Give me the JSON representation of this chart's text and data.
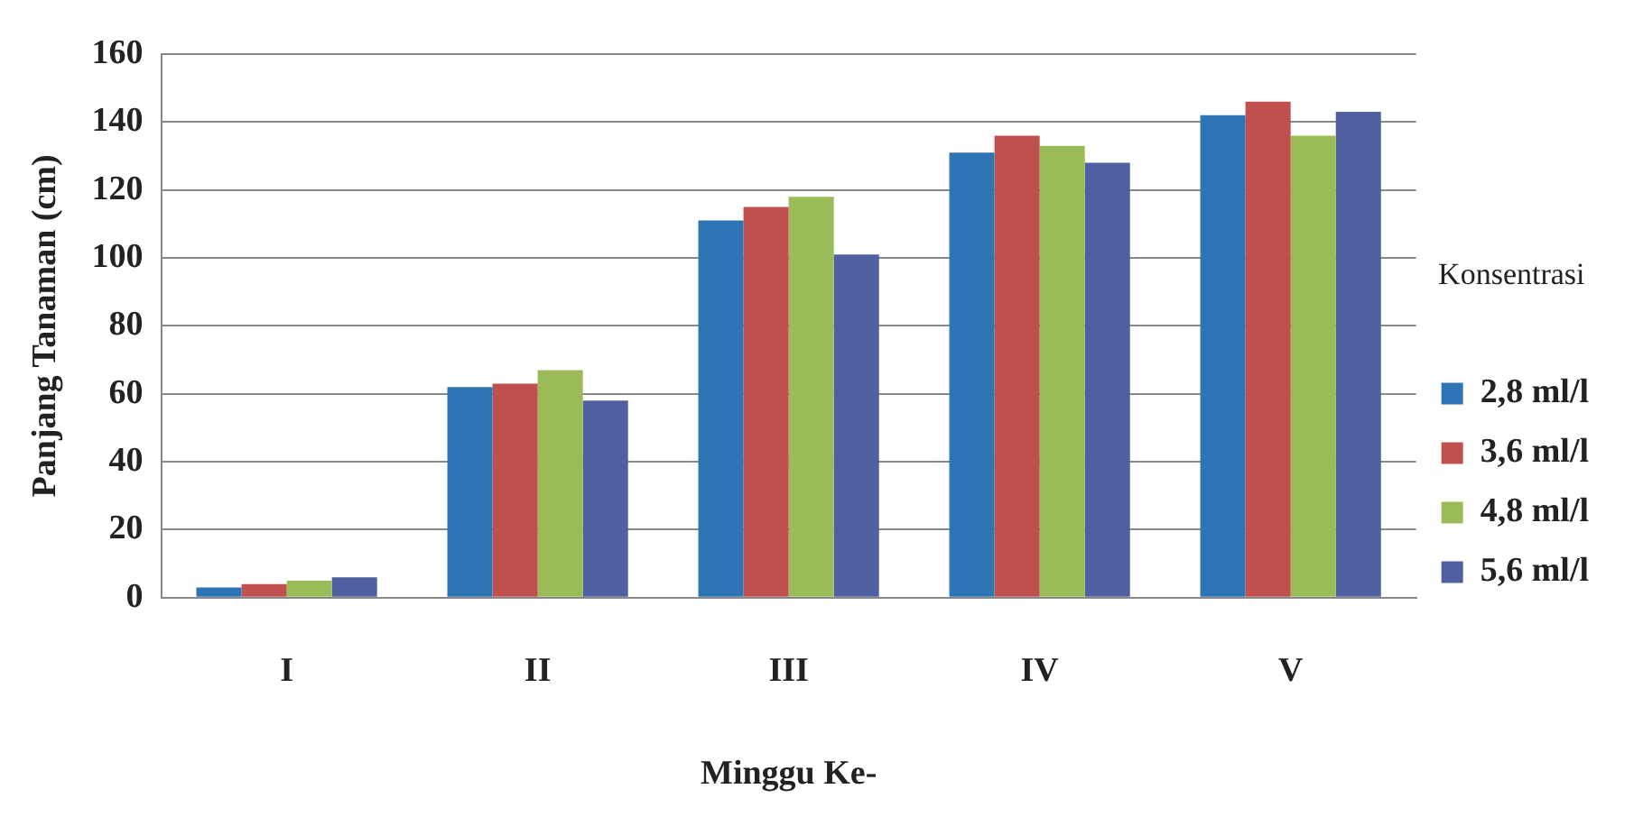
{
  "chart_data": {
    "type": "bar",
    "xlabel": "Minggu Ke-",
    "ylabel": "Panjang Tanaman (cm)",
    "legend_title": "Konsentrasi",
    "legend": "right",
    "grid": "y",
    "categories": [
      "I",
      "II",
      "III",
      "IV",
      "V"
    ],
    "ylim": [
      0,
      160
    ],
    "yticks": [
      0,
      20,
      40,
      60,
      80,
      100,
      120,
      140,
      160
    ],
    "series": [
      {
        "name": "2,8 ml/l",
        "color": "#2e75b6",
        "values": [
          3,
          62,
          111,
          131,
          142
        ]
      },
      {
        "name": "3,6 ml/l",
        "color": "#c0504d",
        "values": [
          4,
          63,
          115,
          136,
          146
        ]
      },
      {
        "name": "4,8 ml/l",
        "color": "#9bbb59",
        "values": [
          5,
          67,
          118,
          133,
          136
        ]
      },
      {
        "name": "5,6 ml/l",
        "color": "#4f5f9f",
        "values": [
          6,
          58,
          101,
          128,
          143
        ]
      }
    ]
  }
}
